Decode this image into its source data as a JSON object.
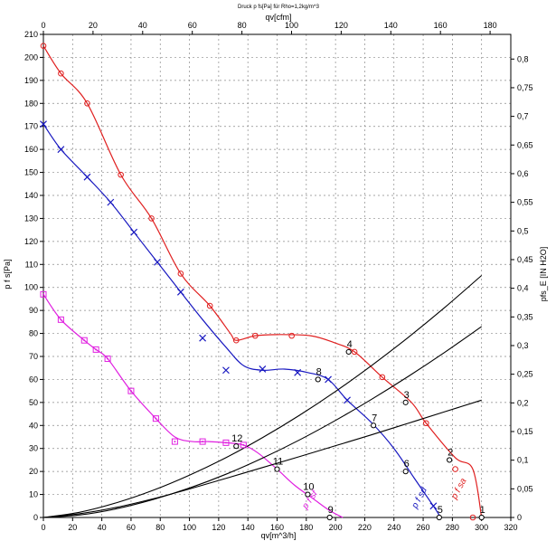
{
  "chart_data": {
    "type": "line",
    "title": "Druck p fs[Pa] für Rho=1,2kg/m^3",
    "xlabel": "qv[m^3/h]",
    "x2label": "qv[cfm]",
    "ylabel": "p f s[Pa]",
    "y2label": "pfs_E [IN H2O]",
    "xlim": [
      0,
      320
    ],
    "ylim": [
      0,
      210
    ],
    "x_ticks": [
      "0",
      "20",
      "40",
      "60",
      "80",
      "100",
      "120",
      "140",
      "160",
      "180",
      "200",
      "220",
      "240",
      "260",
      "280",
      "300",
      "320"
    ],
    "y_ticks": [
      "0",
      "10",
      "20",
      "30",
      "40",
      "50",
      "60",
      "70",
      "80",
      "90",
      "100",
      "110",
      "120",
      "130",
      "140",
      "150",
      "160",
      "170",
      "180",
      "190",
      "200",
      "210"
    ],
    "x2_ticks": [
      "0",
      "20",
      "40",
      "60",
      "80",
      "100",
      "120",
      "140",
      "160",
      "180"
    ],
    "y2_ticks": [
      "0",
      "0,05",
      "0,1",
      "0,15",
      "0,2",
      "0,25",
      "0,3",
      "0,35",
      "0,4",
      "0,45",
      "0,5",
      "0,55",
      "0,6",
      "0,65",
      "0,7",
      "0,75",
      "0,8"
    ],
    "grid": true,
    "series": [
      {
        "name": "p f sa",
        "color": "#e02020",
        "marker": "circle",
        "x": [
          0,
          12,
          30,
          53,
          74,
          94,
          114,
          128,
          132,
          145,
          160,
          183,
          199,
          213,
          232,
          252,
          262,
          282,
          294,
          300
        ],
        "y": [
          205,
          193,
          180,
          149,
          130,
          106,
          92,
          80,
          77,
          79,
          79.5,
          79,
          76,
          72,
          61,
          50,
          41,
          26,
          21,
          0
        ],
        "marker_x": [
          0,
          12,
          30,
          53,
          74,
          94,
          114,
          132,
          145,
          170,
          213,
          232,
          262,
          282,
          294
        ],
        "marker_y": [
          205,
          193,
          180,
          149,
          130,
          106,
          92,
          77,
          79,
          79,
          72,
          61,
          41,
          21,
          0
        ]
      },
      {
        "name": "p f sd",
        "color": "#1818c0",
        "marker": "x",
        "x": [
          0,
          12,
          30,
          46,
          62,
          78,
          94,
          109,
          125,
          137,
          150,
          165,
          181,
          195,
          208,
          225,
          240,
          254,
          267,
          272
        ],
        "y": [
          171,
          160,
          148,
          137,
          124,
          111,
          98,
          86,
          74,
          66,
          64,
          64.5,
          63,
          60,
          51,
          41,
          30,
          17,
          5,
          0
        ],
        "marker_x": [
          0,
          12,
          30,
          46,
          62,
          78,
          94,
          109,
          125,
          150,
          174,
          195,
          208,
          267
        ],
        "marker_y": [
          171,
          160,
          148,
          137,
          124,
          111,
          98,
          78,
          64,
          64.5,
          63,
          60,
          51,
          5
        ]
      },
      {
        "name": "p f sf",
        "color": "#e020e0",
        "marker": "square",
        "x": [
          0,
          12,
          28,
          36,
          44,
          60,
          77,
          90,
          102,
          113,
          125,
          137,
          147,
          160,
          172,
          185,
          196,
          205
        ],
        "y": [
          97,
          86,
          77,
          73,
          69,
          55,
          43,
          35,
          33,
          33,
          32.5,
          31.5,
          28,
          21,
          14,
          8,
          3,
          0
        ],
        "marker_x": [
          0,
          12,
          28,
          36,
          44,
          60,
          77,
          90,
          109,
          125,
          137
        ],
        "marker_y": [
          97,
          86,
          77,
          73,
          69,
          55,
          43,
          33,
          33,
          32.5,
          31.5
        ]
      },
      {
        "name": "",
        "color": "#000000",
        "marker": "none",
        "x": [
          0,
          25,
          50,
          75,
          100,
          125,
          150,
          175,
          200,
          225,
          250,
          275,
          300
        ],
        "y": [
          0,
          1.65,
          4.4,
          8.1,
          12.4,
          17,
          21.7,
          26.4,
          31.2,
          36,
          41,
          46,
          51
        ]
      },
      {
        "name": "",
        "color": "#000000",
        "marker": "none",
        "x": [
          0,
          25,
          50,
          75,
          100,
          125,
          150,
          175,
          200,
          225,
          250,
          275,
          300
        ],
        "y": [
          0,
          2.3,
          6.4,
          11.8,
          18.4,
          26,
          34.7,
          44.3,
          54.8,
          66.2,
          78.4,
          91.4,
          105.2
        ]
      },
      {
        "name": "",
        "color": "#000000",
        "marker": "none",
        "x": [
          0,
          25,
          50,
          75,
          100,
          125,
          150,
          175,
          200,
          225,
          250,
          275,
          300
        ],
        "y": [
          0,
          1.1,
          3.8,
          7.8,
          12.8,
          18.8,
          25.8,
          33.6,
          42.2,
          51.5,
          61.4,
          71.9,
          83
        ]
      }
    ],
    "line_x_max": [
      300,
      300,
      300
    ],
    "line_end_y": [
      33,
      81,
      169
    ],
    "operating_points": [
      {
        "label": "1",
        "x": 300,
        "y": 0
      },
      {
        "label": "2",
        "x": 278,
        "y": 25
      },
      {
        "label": "3",
        "x": 248,
        "y": 50
      },
      {
        "label": "4",
        "x": 209,
        "y": 72
      },
      {
        "label": "5",
        "x": 271,
        "y": 0
      },
      {
        "label": "6",
        "x": 248,
        "y": 20
      },
      {
        "label": "7",
        "x": 226,
        "y": 40
      },
      {
        "label": "8",
        "x": 188,
        "y": 60
      },
      {
        "label": "9",
        "x": 196,
        "y": 0
      },
      {
        "label": "10",
        "x": 181,
        "y": 10
      },
      {
        "label": "11",
        "x": 160,
        "y": 21
      },
      {
        "label": "12",
        "x": 132,
        "y": 31
      }
    ]
  }
}
